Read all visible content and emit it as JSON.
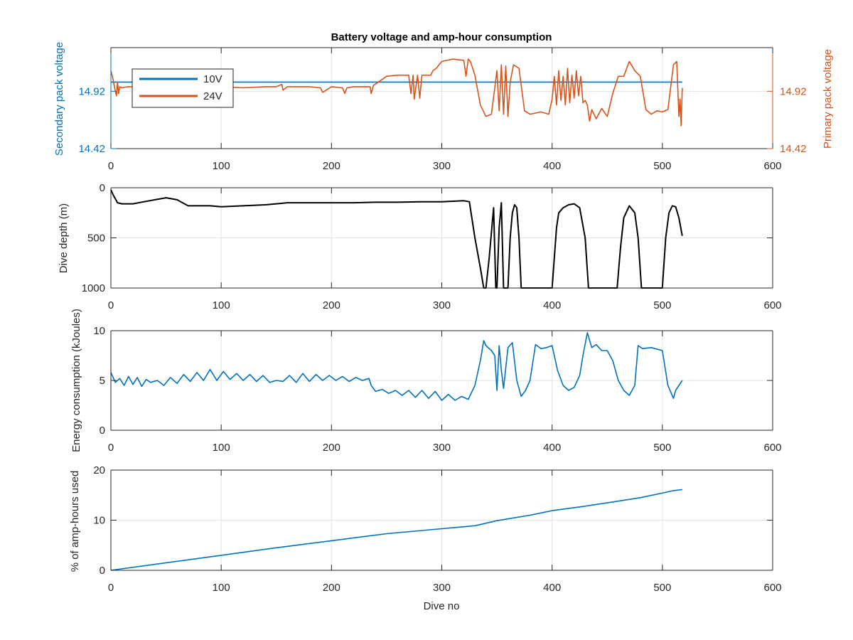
{
  "colors": {
    "blue": "#0072bd",
    "orange": "#d95319",
    "black": "#000000",
    "axis": "#262626",
    "grid": "#e3e3e3"
  },
  "chart_data": [
    {
      "type": "line",
      "title": "Battery voltage and amp-hour consumption",
      "xlabel": "",
      "ylabel": "Secondary pack voltage",
      "ylabel_right": "Primary pack voltage",
      "xlim": [
        0,
        600
      ],
      "x_ticks": [
        "0",
        "100",
        "200",
        "300",
        "400",
        "500",
        "600"
      ],
      "ylim": [
        14.42,
        15.3
      ],
      "y_ticks": [
        "14.42",
        "14.92"
      ],
      "y_ticks_right": [
        "14.42",
        "14.92"
      ],
      "grid": true,
      "legend": {
        "placement": "top-left",
        "entries": [
          "10V",
          "24V"
        ]
      },
      "series": [
        {
          "name": "10V",
          "color": "#0072bd",
          "x": [
            0,
            518
          ],
          "y": [
            15.0,
            15.0
          ]
        },
        {
          "name": "24V",
          "color": "#d95319",
          "x": [
            0,
            2,
            4,
            5,
            6,
            7,
            8,
            10,
            15,
            20,
            30,
            40,
            50,
            60,
            70,
            75,
            78,
            80,
            90,
            100,
            120,
            140,
            150,
            155,
            156,
            160,
            180,
            190,
            192,
            200,
            210,
            212,
            214,
            220,
            230,
            235,
            236,
            238,
            250,
            260,
            270,
            272,
            274,
            275,
            278,
            280,
            282,
            284,
            290,
            292,
            295,
            300,
            310,
            320,
            322,
            324,
            326,
            330,
            335,
            340,
            345,
            350,
            352,
            354,
            356,
            358,
            360,
            362,
            365,
            370,
            375,
            380,
            390,
            397,
            400,
            402,
            404,
            406,
            408,
            410,
            412,
            414,
            416,
            418,
            420,
            422,
            424,
            426,
            428,
            430,
            432,
            434,
            436,
            440,
            445,
            450,
            455,
            460,
            465,
            470,
            475,
            480,
            485,
            490,
            495,
            500,
            505,
            510,
            513,
            515,
            516,
            517,
            518
          ],
          "y": [
            15.1,
            15.02,
            14.92,
            14.88,
            15.0,
            14.9,
            14.96,
            14.95,
            14.96,
            14.96,
            14.97,
            14.95,
            14.96,
            14.94,
            14.97,
            14.97,
            14.96,
            14.96,
            14.95,
            14.96,
            14.95,
            14.96,
            14.96,
            14.98,
            14.93,
            14.96,
            14.96,
            14.95,
            14.91,
            14.96,
            14.95,
            14.9,
            14.95,
            14.96,
            14.96,
            14.96,
            14.9,
            14.97,
            15.05,
            15.06,
            15.06,
            14.9,
            15.06,
            14.85,
            15.06,
            14.86,
            15.06,
            15.06,
            15.06,
            15.1,
            15.12,
            15.18,
            15.2,
            15.19,
            15.05,
            15.2,
            15.18,
            15.06,
            14.8,
            14.7,
            14.72,
            15.1,
            14.75,
            15.15,
            14.72,
            15.14,
            14.7,
            15.0,
            15.15,
            15.12,
            14.75,
            14.72,
            14.74,
            14.72,
            14.85,
            15.05,
            14.8,
            15.1,
            14.84,
            15.05,
            14.8,
            15.12,
            14.82,
            15.06,
            14.86,
            15.1,
            14.88,
            15.05,
            14.82,
            14.84,
            14.8,
            14.66,
            14.76,
            14.68,
            14.77,
            14.7,
            14.9,
            15.05,
            15.05,
            15.18,
            15.1,
            15.05,
            14.76,
            14.72,
            14.75,
            14.74,
            14.76,
            15.15,
            15.18,
            14.7,
            14.85,
            14.62,
            14.95
          ]
        }
      ]
    },
    {
      "type": "line",
      "title": "",
      "xlabel": "",
      "ylabel": "Dive depth (m)",
      "xlim": [
        0,
        600
      ],
      "x_ticks": [
        "0",
        "100",
        "200",
        "300",
        "400",
        "500",
        "600"
      ],
      "ylim": [
        0,
        1000
      ],
      "y_reversed": true,
      "y_ticks": [
        "0",
        "500",
        "1000"
      ],
      "grid": true,
      "series": [
        {
          "name": "",
          "color": "#000000",
          "x": [
            0,
            2,
            4,
            6,
            10,
            20,
            30,
            40,
            50,
            60,
            70,
            80,
            90,
            100,
            120,
            140,
            150,
            160,
            180,
            200,
            220,
            240,
            260,
            280,
            300,
            320,
            325,
            330,
            335,
            338,
            340,
            343,
            345,
            347,
            349,
            350,
            352,
            354,
            356,
            358,
            360,
            362,
            364,
            366,
            368,
            370,
            372,
            374,
            376,
            378,
            380,
            390,
            400,
            402,
            404,
            406,
            410,
            415,
            420,
            425,
            430,
            433,
            436,
            440,
            450,
            459,
            462,
            465,
            470,
            475,
            478,
            481,
            485,
            490,
            500,
            503,
            506,
            509,
            512,
            515,
            518
          ],
          "y": [
            20,
            70,
            110,
            150,
            160,
            160,
            140,
            120,
            100,
            120,
            180,
            180,
            180,
            190,
            180,
            170,
            160,
            150,
            150,
            150,
            150,
            145,
            145,
            140,
            140,
            130,
            140,
            500,
            800,
            1000,
            1000,
            700,
            450,
            200,
            1000,
            1000,
            400,
            150,
            1000,
            1000,
            1000,
            500,
            250,
            170,
            200,
            500,
            1000,
            1000,
            1000,
            1000,
            1000,
            1000,
            1000,
            700,
            400,
            250,
            200,
            170,
            160,
            200,
            500,
            1000,
            1000,
            1000,
            1000,
            1000,
            600,
            300,
            180,
            250,
            500,
            1000,
            1000,
            1000,
            1000,
            500,
            250,
            180,
            190,
            300,
            480
          ]
        }
      ]
    },
    {
      "type": "line",
      "title": "",
      "xlabel": "",
      "ylabel": "Energy consumption (kJoules)",
      "xlim": [
        0,
        600
      ],
      "x_ticks": [
        "0",
        "100",
        "200",
        "300",
        "400",
        "500",
        "600"
      ],
      "ylim": [
        0,
        10
      ],
      "y_ticks": [
        "0",
        "5",
        "10"
      ],
      "grid": true,
      "series": [
        {
          "name": "",
          "color": "#0072bd",
          "x": [
            0,
            4,
            8,
            12,
            16,
            20,
            24,
            28,
            32,
            36,
            42,
            48,
            54,
            60,
            66,
            72,
            78,
            84,
            90,
            96,
            102,
            108,
            114,
            120,
            126,
            132,
            138,
            144,
            150,
            156,
            162,
            168,
            174,
            180,
            186,
            192,
            198,
            204,
            210,
            216,
            222,
            228,
            234,
            236,
            240,
            246,
            252,
            258,
            264,
            270,
            276,
            282,
            288,
            294,
            300,
            306,
            312,
            318,
            324,
            330,
            335,
            338,
            340,
            345,
            348,
            350,
            352,
            354,
            356,
            360,
            364,
            368,
            372,
            376,
            380,
            385,
            390,
            395,
            400,
            405,
            410,
            415,
            420,
            425,
            428,
            432,
            436,
            440,
            445,
            450,
            455,
            460,
            465,
            470,
            475,
            478,
            482,
            490,
            500,
            505,
            510,
            512,
            515,
            518
          ],
          "y": [
            5.8,
            4.8,
            5.2,
            4.5,
            5.4,
            4.6,
            5.3,
            4.4,
            5.1,
            4.8,
            5.0,
            4.5,
            5.3,
            4.7,
            5.6,
            4.9,
            5.8,
            5.0,
            6.1,
            5.0,
            5.9,
            5.1,
            5.7,
            5.0,
            5.6,
            4.9,
            5.5,
            4.8,
            5.0,
            4.9,
            5.5,
            4.8,
            5.7,
            4.9,
            5.6,
            5.0,
            5.5,
            5.0,
            5.4,
            4.9,
            5.3,
            5.0,
            5.2,
            4.5,
            3.9,
            4.1,
            3.7,
            4.0,
            3.5,
            4.0,
            3.3,
            4.0,
            3.2,
            3.9,
            3.0,
            3.6,
            3.0,
            3.4,
            3.1,
            4.5,
            7.0,
            9.0,
            8.5,
            8.0,
            7.5,
            4.0,
            8.5,
            6.0,
            4.2,
            8.3,
            8.8,
            5.0,
            3.4,
            4.0,
            5.0,
            8.6,
            8.2,
            8.3,
            8.5,
            6.0,
            4.5,
            4.0,
            4.3,
            5.5,
            7.5,
            9.8,
            8.3,
            8.6,
            8.0,
            8.0,
            7.0,
            5.0,
            4.0,
            3.5,
            4.5,
            8.5,
            8.2,
            8.3,
            8.0,
            4.5,
            3.2,
            4.0,
            4.5,
            5.0
          ]
        }
      ]
    },
    {
      "type": "line",
      "title": "",
      "xlabel": "Dive no",
      "ylabel": "% of amp-hours used",
      "xlim": [
        0,
        600
      ],
      "x_ticks": [
        "0",
        "100",
        "200",
        "300",
        "400",
        "500",
        "600"
      ],
      "ylim": [
        0,
        20
      ],
      "y_ticks": [
        "0",
        "10",
        "20"
      ],
      "grid": true,
      "series": [
        {
          "name": "",
          "color": "#0072bd",
          "x": [
            0,
            50,
            100,
            150,
            200,
            250,
            300,
            330,
            350,
            380,
            400,
            430,
            460,
            480,
            500,
            510,
            518
          ],
          "y": [
            0,
            1.5,
            3.0,
            4.5,
            5.9,
            7.3,
            8.3,
            8.9,
            9.9,
            11.0,
            11.9,
            12.8,
            13.8,
            14.5,
            15.4,
            15.9,
            16.1
          ]
        }
      ]
    }
  ]
}
